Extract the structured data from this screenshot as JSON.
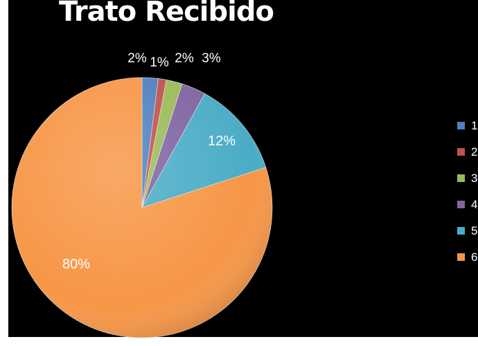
{
  "chart_data": {
    "type": "pie",
    "title": "Trato Recibido",
    "legend": "right",
    "start_angle_deg": 0,
    "slices": [
      {
        "label": "1",
        "value": 2,
        "display": "2%",
        "color": "#4F81BD"
      },
      {
        "label": "2",
        "value": 1,
        "display": "1%",
        "color": "#C0504D"
      },
      {
        "label": "3",
        "value": 2,
        "display": "2%",
        "color": "#9BBB59"
      },
      {
        "label": "4",
        "value": 3,
        "display": "3%",
        "color": "#8064A2"
      },
      {
        "label": "5",
        "value": 12,
        "display": "12%",
        "color": "#4BACC6"
      },
      {
        "label": "6",
        "value": 80,
        "display": "80%",
        "color": "#F79646"
      }
    ]
  }
}
